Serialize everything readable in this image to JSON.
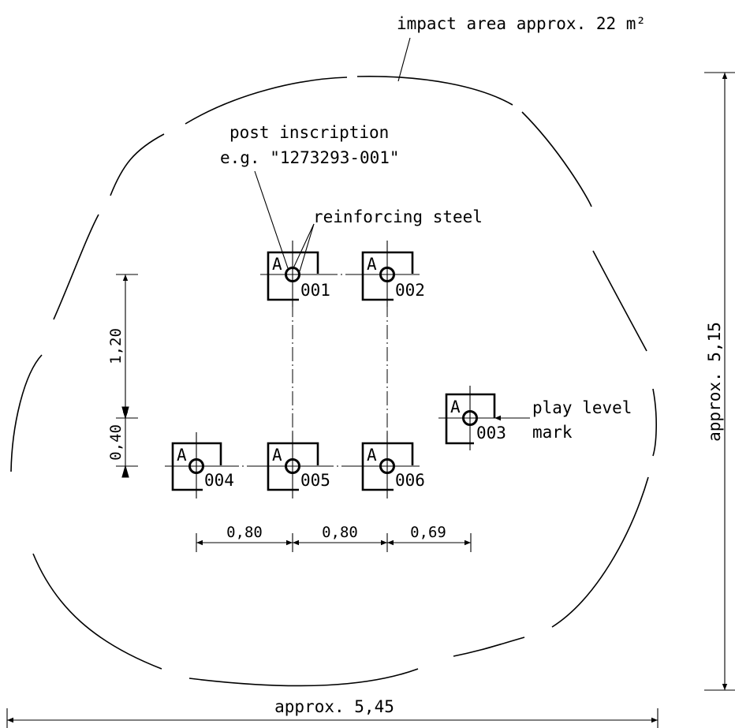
{
  "labels": {
    "impact_area": "impact area approx. 22 m²",
    "post_inscription_line1": "post inscription",
    "post_inscription_line2": "e.g. \"1273293-001\"",
    "reinforcing_steel": "reinforcing steel",
    "play_level_line1": "play level",
    "play_level_line2": "mark"
  },
  "posts": [
    {
      "letter": "A",
      "number": "001"
    },
    {
      "letter": "A",
      "number": "002"
    },
    {
      "letter": "A",
      "number": "003"
    },
    {
      "letter": "A",
      "number": "004"
    },
    {
      "letter": "A",
      "number": "005"
    },
    {
      "letter": "A",
      "number": "006"
    }
  ],
  "dimensions": {
    "vertical_spacing": "1,20",
    "vertical_offset": "0,40",
    "horizontal_1": "0,80",
    "horizontal_2": "0,80",
    "horizontal_3": "0,69",
    "overall_height": "approx. 5,15",
    "overall_width": "approx. 5,45"
  }
}
